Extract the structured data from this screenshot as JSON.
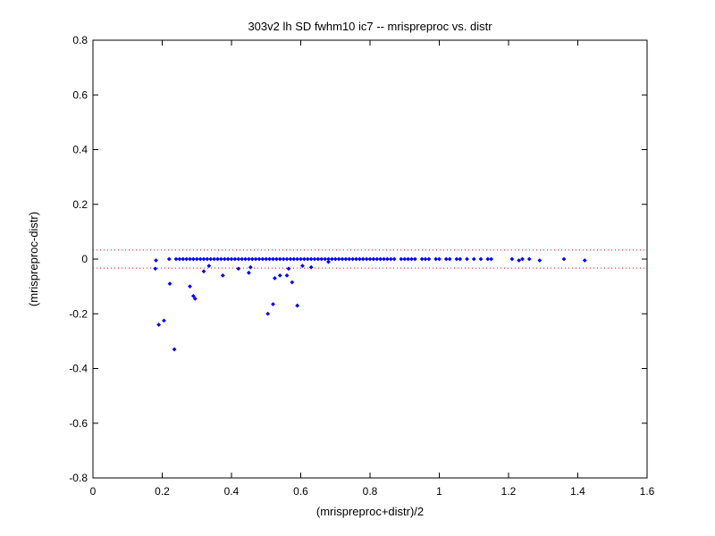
{
  "chart_data": {
    "type": "scatter",
    "title": "303v2 lh SD fwhm10 ic7 -- mrispreproc vs. distr",
    "xlabel": "(mrispreproc+distr)/2",
    "ylabel": "(mrispreproc-distr)",
    "xlim": [
      0,
      1.6
    ],
    "ylim": [
      -0.8,
      0.8
    ],
    "xticks": [
      0,
      0.2,
      0.4,
      0.6,
      0.8,
      1.0,
      1.2,
      1.4,
      1.6
    ],
    "xtick_labels": [
      "0",
      "0.2",
      "0.4",
      "0.6",
      "0.8",
      "1",
      "1.2",
      "1.4",
      "1.6"
    ],
    "yticks": [
      -0.8,
      -0.6,
      -0.4,
      -0.2,
      0,
      0.2,
      0.4,
      0.6,
      0.8
    ],
    "ytick_labels": [
      "-0.8",
      "-0.6",
      "-0.4",
      "-0.2",
      "0",
      "0.2",
      "0.4",
      "0.6",
      "0.8"
    ],
    "grid": false,
    "marker_color": "#0000ff",
    "reference_line_color": "#ff0000",
    "reference_lines": [
      0.033,
      -0.033
    ],
    "points": [
      [
        0.18,
        -0.035
      ],
      [
        0.182,
        -0.005
      ],
      [
        0.19,
        -0.24
      ],
      [
        0.205,
        -0.225
      ],
      [
        0.222,
        -0.09
      ],
      [
        0.235,
        -0.33
      ],
      [
        0.28,
        -0.1
      ],
      [
        0.29,
        -0.135
      ],
      [
        0.295,
        -0.145
      ],
      [
        0.32,
        -0.045
      ],
      [
        0.335,
        -0.025
      ],
      [
        0.375,
        -0.06
      ],
      [
        0.42,
        -0.035
      ],
      [
        0.45,
        -0.05
      ],
      [
        0.455,
        -0.03
      ],
      [
        0.505,
        -0.2
      ],
      [
        0.52,
        -0.165
      ],
      [
        0.525,
        -0.07
      ],
      [
        0.54,
        -0.06
      ],
      [
        0.56,
        -0.06
      ],
      [
        0.565,
        -0.035
      ],
      [
        0.575,
        -0.085
      ],
      [
        0.59,
        -0.17
      ],
      [
        0.605,
        -0.025
      ],
      [
        0.63,
        -0.03
      ],
      [
        0.68,
        -0.01
      ],
      [
        0.22,
        0.0
      ],
      [
        0.24,
        0.0
      ],
      [
        0.25,
        0.0
      ],
      [
        0.26,
        0.0
      ],
      [
        0.27,
        0.0
      ],
      [
        0.28,
        0.0
      ],
      [
        0.29,
        0.0
      ],
      [
        0.3,
        0.0
      ],
      [
        0.31,
        0.0
      ],
      [
        0.32,
        0.0
      ],
      [
        0.33,
        0.0
      ],
      [
        0.34,
        0.0
      ],
      [
        0.35,
        0.0
      ],
      [
        0.36,
        0.0
      ],
      [
        0.37,
        0.0
      ],
      [
        0.38,
        0.0
      ],
      [
        0.39,
        0.0
      ],
      [
        0.4,
        0.0
      ],
      [
        0.41,
        0.0
      ],
      [
        0.42,
        0.0
      ],
      [
        0.43,
        0.0
      ],
      [
        0.44,
        0.0
      ],
      [
        0.45,
        0.0
      ],
      [
        0.46,
        0.0
      ],
      [
        0.47,
        0.0
      ],
      [
        0.48,
        0.0
      ],
      [
        0.49,
        0.0
      ],
      [
        0.5,
        0.0
      ],
      [
        0.51,
        0.0
      ],
      [
        0.52,
        0.0
      ],
      [
        0.53,
        0.0
      ],
      [
        0.54,
        0.0
      ],
      [
        0.55,
        0.0
      ],
      [
        0.56,
        0.0
      ],
      [
        0.57,
        0.0
      ],
      [
        0.58,
        0.0
      ],
      [
        0.59,
        0.0
      ],
      [
        0.6,
        0.0
      ],
      [
        0.61,
        0.0
      ],
      [
        0.62,
        0.0
      ],
      [
        0.63,
        0.0
      ],
      [
        0.64,
        0.0
      ],
      [
        0.65,
        0.0
      ],
      [
        0.66,
        0.0
      ],
      [
        0.67,
        0.0
      ],
      [
        0.68,
        0.0
      ],
      [
        0.69,
        0.0
      ],
      [
        0.7,
        0.0
      ],
      [
        0.71,
        0.0
      ],
      [
        0.72,
        0.0
      ],
      [
        0.73,
        0.0
      ],
      [
        0.74,
        0.0
      ],
      [
        0.75,
        0.0
      ],
      [
        0.76,
        0.0
      ],
      [
        0.77,
        0.0
      ],
      [
        0.78,
        0.0
      ],
      [
        0.79,
        0.0
      ],
      [
        0.8,
        0.0
      ],
      [
        0.81,
        0.0
      ],
      [
        0.82,
        0.0
      ],
      [
        0.83,
        0.0
      ],
      [
        0.84,
        0.0
      ],
      [
        0.85,
        0.0
      ],
      [
        0.86,
        0.0
      ],
      [
        0.87,
        0.0
      ],
      [
        0.89,
        0.0
      ],
      [
        0.9,
        0.0
      ],
      [
        0.91,
        0.0
      ],
      [
        0.92,
        0.0
      ],
      [
        0.93,
        0.0
      ],
      [
        0.95,
        0.0
      ],
      [
        0.96,
        0.0
      ],
      [
        0.97,
        0.0
      ],
      [
        0.99,
        0.0
      ],
      [
        1.0,
        0.0
      ],
      [
        1.02,
        0.0
      ],
      [
        1.03,
        0.0
      ],
      [
        1.05,
        0.0
      ],
      [
        1.06,
        0.0
      ],
      [
        1.08,
        0.0
      ],
      [
        1.1,
        0.0
      ],
      [
        1.12,
        0.0
      ],
      [
        1.14,
        0.0
      ],
      [
        1.15,
        0.0
      ],
      [
        1.21,
        0.0
      ],
      [
        1.23,
        -0.005
      ],
      [
        1.24,
        0.0
      ],
      [
        1.26,
        0.0
      ],
      [
        1.29,
        -0.005
      ],
      [
        1.36,
        0.0
      ],
      [
        1.42,
        -0.005
      ]
    ]
  }
}
